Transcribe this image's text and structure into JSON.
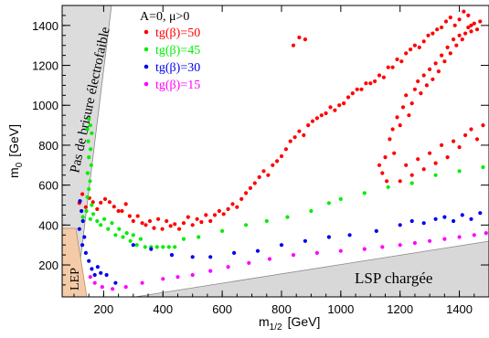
{
  "chart_data": {
    "type": "scatter",
    "xlabel": "m",
    "xlabel_sub": "1/2",
    "xlabel_unit": "[GeV]",
    "ylabel": "m",
    "ylabel_sub": "0",
    "ylabel_unit": "[GeV]",
    "xlim": [
      60,
      1500
    ],
    "ylim": [
      40,
      1500
    ],
    "x_ticks": [
      200,
      400,
      600,
      800,
      1000,
      1200,
      1400
    ],
    "y_ticks": [
      200,
      400,
      600,
      800,
      1000,
      1200,
      1400
    ],
    "grid": false,
    "legend_position": "top-left",
    "legend_title": "A=0, μ>0",
    "annotations": {
      "ewsb": "Pas de brisure électrofaible",
      "lep": "LEP",
      "lsp": "LSP chargée"
    },
    "series": [
      {
        "name": "tg(β)=50",
        "color": "#ff0000",
        "points": [
          [
            118,
            510
          ],
          [
            128,
            555
          ],
          [
            140,
            490
          ],
          [
            152,
            535
          ],
          [
            164,
            515
          ],
          [
            178,
            480
          ],
          [
            190,
            512
          ],
          [
            205,
            530
          ],
          [
            220,
            515
          ],
          [
            235,
            492
          ],
          [
            250,
            470
          ],
          [
            262,
            470
          ],
          [
            275,
            505
          ],
          [
            288,
            445
          ],
          [
            300,
            420
          ],
          [
            315,
            445
          ],
          [
            330,
            410
          ],
          [
            342,
            400
          ],
          [
            356,
            420
          ],
          [
            370,
            385
          ],
          [
            384,
            430
          ],
          [
            398,
            380
          ],
          [
            412,
            420
          ],
          [
            426,
            395
          ],
          [
            440,
            405
          ],
          [
            455,
            380
          ],
          [
            470,
            410
          ],
          [
            485,
            440
          ],
          [
            500,
            400
          ],
          [
            515,
            430
          ],
          [
            530,
            415
          ],
          [
            545,
            450
          ],
          [
            560,
            420
          ],
          [
            575,
            450
          ],
          [
            590,
            470
          ],
          [
            605,
            455
          ],
          [
            620,
            480
          ],
          [
            635,
            505
          ],
          [
            650,
            490
          ],
          [
            665,
            530
          ],
          [
            680,
            560
          ],
          [
            695,
            585
          ],
          [
            710,
            610
          ],
          [
            725,
            640
          ],
          [
            740,
            670
          ],
          [
            755,
            650
          ],
          [
            770,
            700
          ],
          [
            785,
            720
          ],
          [
            800,
            745
          ],
          [
            815,
            780
          ],
          [
            830,
            820
          ],
          [
            845,
            840
          ],
          [
            860,
            870
          ],
          [
            875,
            850
          ],
          [
            890,
            900
          ],
          [
            905,
            920
          ],
          [
            920,
            935
          ],
          [
            935,
            950
          ],
          [
            950,
            960
          ],
          [
            965,
            990
          ],
          [
            980,
            975
          ],
          [
            995,
            1000
          ],
          [
            1010,
            1010
          ],
          [
            1025,
            1040
          ],
          [
            1040,
            1060
          ],
          [
            1055,
            1080
          ],
          [
            1070,
            1080
          ],
          [
            1085,
            1110
          ],
          [
            1100,
            1110
          ],
          [
            1115,
            1120
          ],
          [
            1130,
            1150
          ],
          [
            1145,
            1140
          ],
          [
            1160,
            1190
          ],
          [
            1175,
            1190
          ],
          [
            1190,
            1230
          ],
          [
            1205,
            1220
          ],
          [
            1220,
            1260
          ],
          [
            1235,
            1280
          ],
          [
            1250,
            1300
          ],
          [
            1265,
            1290
          ],
          [
            1280,
            1320
          ],
          [
            1295,
            1350
          ],
          [
            1310,
            1360
          ],
          [
            1325,
            1380
          ],
          [
            1340,
            1390
          ],
          [
            1355,
            1420
          ],
          [
            1370,
            1440
          ],
          [
            1385,
            1400
          ],
          [
            1400,
            1430
          ],
          [
            1415,
            1470
          ],
          [
            1430,
            1450
          ],
          [
            1440,
            1400
          ],
          [
            1130,
            700
          ],
          [
            1140,
            660
          ],
          [
            1150,
            740
          ],
          [
            1155,
            620
          ],
          [
            1165,
            830
          ],
          [
            1175,
            880
          ],
          [
            1180,
            760
          ],
          [
            1190,
            940
          ],
          [
            1200,
            900
          ],
          [
            1210,
            990
          ],
          [
            1220,
            1050
          ],
          [
            1230,
            950
          ],
          [
            1240,
            1010
          ],
          [
            1250,
            1080
          ],
          [
            1260,
            1120
          ],
          [
            1270,
            1060
          ],
          [
            1280,
            1150
          ],
          [
            1290,
            1100
          ],
          [
            1300,
            1180
          ],
          [
            1310,
            1130
          ],
          [
            1320,
            1210
          ],
          [
            1330,
            1170
          ],
          [
            1340,
            1250
          ],
          [
            1350,
            1220
          ],
          [
            1360,
            1290
          ],
          [
            1370,
            1260
          ],
          [
            1380,
            1330
          ],
          [
            1390,
            1300
          ],
          [
            1400,
            1350
          ],
          [
            1410,
            1330
          ],
          [
            1420,
            1360
          ],
          [
            1430,
            1390
          ],
          [
            1440,
            1370
          ],
          [
            1450,
            1410
          ],
          [
            1460,
            1380
          ],
          [
            1470,
            1420
          ],
          [
            1200,
            620
          ],
          [
            1220,
            700
          ],
          [
            1240,
            650
          ],
          [
            1260,
            730
          ],
          [
            1280,
            680
          ],
          [
            1300,
            760
          ],
          [
            1320,
            710
          ],
          [
            1340,
            800
          ],
          [
            1360,
            740
          ],
          [
            1380,
            820
          ],
          [
            1400,
            790
          ],
          [
            1420,
            850
          ],
          [
            1440,
            880
          ],
          [
            1460,
            830
          ],
          [
            1480,
            900
          ],
          [
            840,
            1300
          ],
          [
            860,
            1340
          ],
          [
            880,
            1330
          ]
        ]
      },
      {
        "name": "tg(β)=45",
        "color": "#00ee00",
        "points": [
          [
            150,
            930
          ],
          [
            155,
            900
          ],
          [
            145,
            880
          ],
          [
            160,
            860
          ],
          [
            148,
            820
          ],
          [
            156,
            780
          ],
          [
            150,
            740
          ],
          [
            158,
            700
          ],
          [
            146,
            660
          ],
          [
            154,
            620
          ],
          [
            150,
            580
          ],
          [
            145,
            540
          ],
          [
            160,
            500
          ],
          [
            130,
            440
          ],
          [
            142,
            470
          ],
          [
            155,
            430
          ],
          [
            165,
            455
          ],
          [
            178,
            420
          ],
          [
            190,
            400
          ],
          [
            202,
            430
          ],
          [
            215,
            380
          ],
          [
            228,
            410
          ],
          [
            240,
            350
          ],
          [
            252,
            380
          ],
          [
            265,
            340
          ],
          [
            278,
            360
          ],
          [
            290,
            320
          ],
          [
            300,
            350
          ],
          [
            312,
            300
          ],
          [
            325,
            330
          ],
          [
            340,
            290
          ],
          [
            360,
            290
          ],
          [
            380,
            290
          ],
          [
            400,
            290
          ],
          [
            420,
            290
          ],
          [
            440,
            290
          ],
          [
            470,
            330
          ],
          [
            520,
            340
          ],
          [
            600,
            370
          ],
          [
            680,
            400
          ],
          [
            750,
            420
          ],
          [
            820,
            440
          ],
          [
            900,
            470
          ],
          [
            960,
            510
          ],
          [
            1000,
            530
          ],
          [
            1080,
            560
          ],
          [
            1160,
            590
          ],
          [
            1240,
            610
          ],
          [
            1320,
            650
          ],
          [
            1400,
            670
          ],
          [
            1480,
            690
          ]
        ]
      },
      {
        "name": "tg(β)=30",
        "color": "#0000ee",
        "points": [
          [
            120,
            520
          ],
          [
            125,
            470
          ],
          [
            130,
            420
          ],
          [
            118,
            380
          ],
          [
            135,
            340
          ],
          [
            128,
            300
          ],
          [
            140,
            260
          ],
          [
            150,
            220
          ],
          [
            160,
            180
          ],
          [
            170,
            150
          ],
          [
            180,
            190
          ],
          [
            190,
            160
          ],
          [
            210,
            150
          ],
          [
            240,
            110
          ],
          [
            300,
            300
          ],
          [
            360,
            280
          ],
          [
            430,
            250
          ],
          [
            500,
            240
          ],
          [
            560,
            240
          ],
          [
            640,
            260
          ],
          [
            720,
            270
          ],
          [
            800,
            300
          ],
          [
            880,
            320
          ],
          [
            960,
            340
          ],
          [
            1030,
            350
          ],
          [
            1120,
            370
          ],
          [
            1200,
            400
          ],
          [
            1240,
            420
          ],
          [
            1280,
            410
          ],
          [
            1320,
            430
          ],
          [
            1350,
            440
          ],
          [
            1380,
            420
          ],
          [
            1410,
            450
          ],
          [
            1440,
            430
          ],
          [
            1470,
            460
          ]
        ]
      },
      {
        "name": "tg(β)=15",
        "color": "#ff00ff",
        "points": [
          [
            155,
            140
          ],
          [
            170,
            110
          ],
          [
            195,
            90
          ],
          [
            230,
            80
          ],
          [
            275,
            90
          ],
          [
            330,
            110
          ],
          [
            400,
            130
          ],
          [
            450,
            140
          ],
          [
            500,
            150
          ],
          [
            560,
            170
          ],
          [
            620,
            190
          ],
          [
            690,
            210
          ],
          [
            760,
            230
          ],
          [
            840,
            250
          ],
          [
            920,
            260
          ],
          [
            1000,
            270
          ],
          [
            1080,
            280
          ],
          [
            1140,
            290
          ],
          [
            1200,
            300
          ],
          [
            1250,
            310
          ],
          [
            1300,
            320
          ],
          [
            1350,
            330
          ],
          [
            1400,
            340
          ],
          [
            1450,
            350
          ],
          [
            1490,
            360
          ]
        ]
      }
    ]
  }
}
